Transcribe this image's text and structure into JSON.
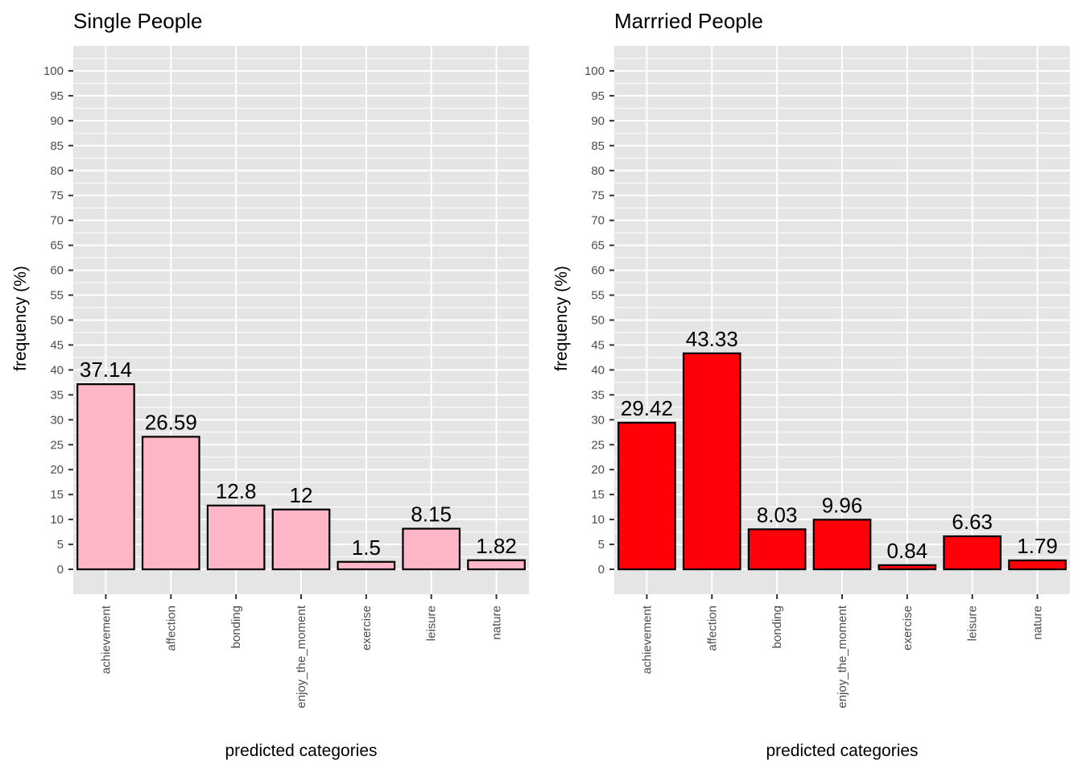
{
  "chart_data": [
    {
      "type": "bar",
      "title": "Single People",
      "xlabel": "predicted categories",
      "ylabel": "frequency (%)",
      "categories": [
        "achievement",
        "affection",
        "bonding",
        "enjoy_the_moment",
        "exercise",
        "leisure",
        "nature"
      ],
      "values": [
        37.14,
        26.59,
        12.8,
        12,
        1.5,
        8.15,
        1.82
      ],
      "data_labels": [
        "37.14",
        "26.59",
        "12.8",
        "12",
        "1.5",
        "8.15",
        "1.82"
      ],
      "y_ticks": [
        "0",
        "5",
        "10",
        "15",
        "20",
        "25",
        "30",
        "35",
        "40",
        "45",
        "50",
        "55",
        "60",
        "65",
        "70",
        "75",
        "80",
        "85",
        "90",
        "95",
        "100"
      ],
      "ylim": [
        -5,
        105
      ],
      "grid": true,
      "bar_color": "#ffb6c6"
    },
    {
      "type": "bar",
      "title": "Marrried People",
      "xlabel": "predicted categories",
      "ylabel": "frequency (%)",
      "categories": [
        "achievement",
        "affection",
        "bonding",
        "enjoy_the_moment",
        "exercise",
        "leisure",
        "nature"
      ],
      "values": [
        29.42,
        43.33,
        8.03,
        9.96,
        0.84,
        6.63,
        1.79
      ],
      "data_labels": [
        "29.42",
        "43.33",
        "8.03",
        "9.96",
        "0.84",
        "6.63",
        "1.79"
      ],
      "y_ticks": [
        "0",
        "5",
        "10",
        "15",
        "20",
        "25",
        "30",
        "35",
        "40",
        "45",
        "50",
        "55",
        "60",
        "65",
        "70",
        "75",
        "80",
        "85",
        "90",
        "95",
        "100"
      ],
      "ylim": [
        -5,
        105
      ],
      "grid": true,
      "bar_color": "#ff0008"
    }
  ],
  "colors": {
    "panel_background": "#e5e5e5",
    "grid": "#ffffff",
    "bar_outline": "#000000"
  }
}
